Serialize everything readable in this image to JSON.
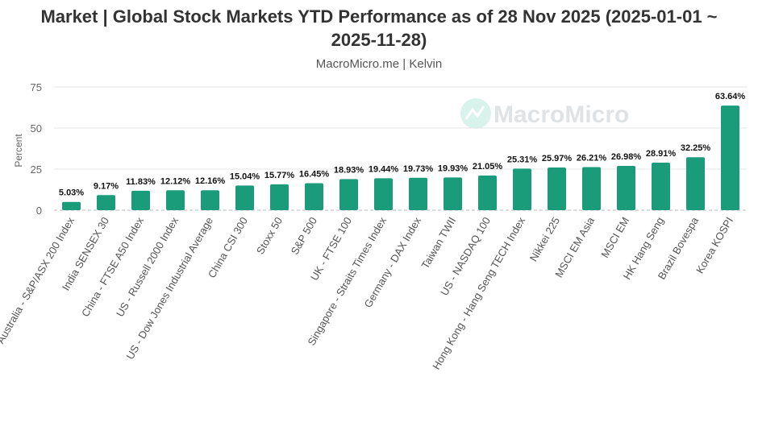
{
  "chart_data": {
    "type": "bar",
    "title": "Market | Global Stock Markets YTD Performance as of 28 Nov 2025 (2025-01-01 ~ 2025-11-28)",
    "subtitle": "MacroMicro.me | Kelvin",
    "watermark": "MacroMicro",
    "ylabel": "Percent",
    "xlabel": "",
    "ylim": [
      0,
      75
    ],
    "yticks": [
      0,
      25,
      50,
      75
    ],
    "grid": true,
    "bar_color": "#1a9c7b",
    "categories": [
      "Australia - S&P/ASX 200 Index",
      "India SENSEX 30",
      "China - FTSE A50 Index",
      "US - Russell 2000 Index",
      "US - Dow Jones Industrial Average",
      "China CSI 300",
      "Stoxx 50",
      "S&P 500",
      "UK - FTSE 100",
      "Singapore - Straits Times Index",
      "Germany - DAX Index",
      "Taiwan TWII",
      "US - NASDAQ 100",
      "Hong Kong - Hang Seng TECH Index",
      "Nikkei 225",
      "MSCI EM Asia",
      "MSCI EM",
      "HK Hang Seng",
      "Brazil Bovespa",
      "Korea KOSPI"
    ],
    "values": [
      5.03,
      9.17,
      11.83,
      12.12,
      12.16,
      15.04,
      15.77,
      16.45,
      18.93,
      19.44,
      19.73,
      19.93,
      21.05,
      25.31,
      25.97,
      26.21,
      26.98,
      28.91,
      32.25,
      63.64
    ],
    "data_labels": [
      "5.03%",
      "9.17%",
      "11.83%",
      "12.12%",
      "12.16%",
      "15.04%",
      "15.77%",
      "16.45%",
      "18.93%",
      "19.44%",
      "19.73%",
      "19.93%",
      "21.05%",
      "25.31%",
      "25.97%",
      "26.21%",
      "26.98%",
      "28.91%",
      "32.25%",
      "63.64%"
    ]
  }
}
